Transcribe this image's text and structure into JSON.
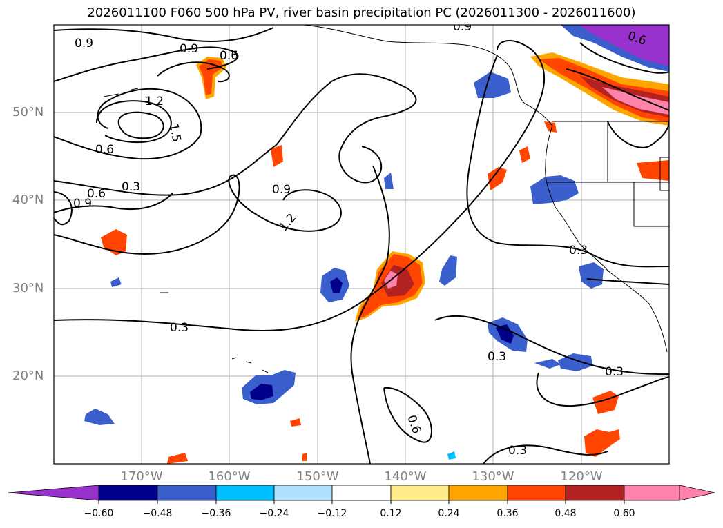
{
  "title": "2026011100 F060 500 hPa PV, river basin precipitation PC (2026011300 - 2026011600)",
  "lat_labels": [
    "50°N",
    "40°N",
    "30°N",
    "20°N"
  ],
  "lon_labels": [
    "170°W",
    "160°W",
    "150°W",
    "140°W",
    "130°W",
    "120°W"
  ],
  "contour_labels": [
    "0.9",
    "0.9",
    "0.6",
    "1.2",
    "1.5",
    "0.6",
    "0.3",
    "0.6",
    "0.9",
    "0.9",
    "1.2",
    "0.3",
    "0.3",
    "0.3",
    "0.3",
    "0.6",
    "0.3",
    "0.9",
    "0.6"
  ],
  "colorbar": {
    "ticks": [
      "−0.60",
      "−0.48",
      "−0.36",
      "−0.24",
      "−0.12",
      "0.12",
      "0.24",
      "0.36",
      "0.48",
      "0.60"
    ],
    "colors": [
      "#9932cc",
      "#00008b",
      "#3a5fcd",
      "#00bfff",
      "#b0e2ff",
      "#ffffff",
      "#ffec8b",
      "#ffa500",
      "#ff4500",
      "#b22222",
      "#ff82ab",
      "#ff82ab"
    ]
  },
  "colors": {
    "grid": "#b0b0b0",
    "contour": "#000000",
    "label_gray": "#808080"
  }
}
